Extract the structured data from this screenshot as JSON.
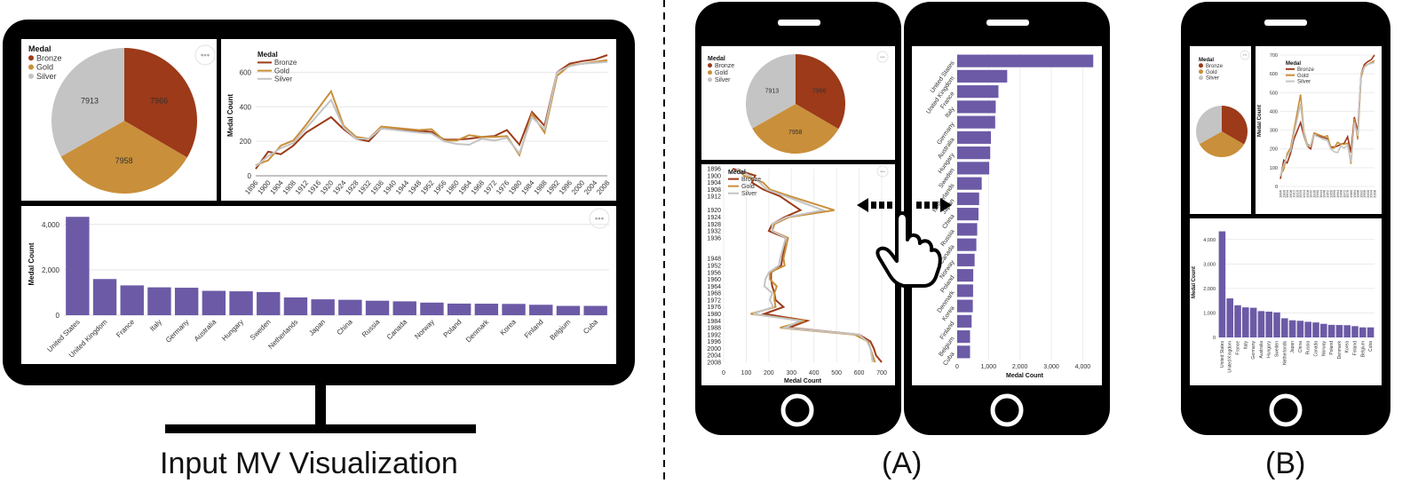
{
  "captions": {
    "input": "Input MV Visualization",
    "a": "(A)",
    "b": "(B)"
  },
  "colors": {
    "bronze": "#9c3a19",
    "gold": "#c98f3a",
    "silver": "#c4c4c4",
    "bar": "#6c5aa6",
    "frame": "#000000"
  },
  "legend": {
    "title": "Medal",
    "items": [
      "Bronze",
      "Gold",
      "Silver"
    ]
  },
  "chart_data": [
    {
      "type": "pie",
      "title": "Medal",
      "labels": [
        "Bronze",
        "Gold",
        "Silver"
      ],
      "values": [
        7966,
        7958,
        7913
      ]
    },
    {
      "type": "line",
      "ylabel": "Medal Count",
      "ylim": [
        0,
        700
      ],
      "yticks": [
        0,
        200,
        400,
        600
      ],
      "x": [
        1896,
        1900,
        1904,
        1908,
        1912,
        1920,
        1924,
        1928,
        1932,
        1936,
        1948,
        1952,
        1956,
        1960,
        1964,
        1968,
        1972,
        1976,
        1980,
        1984,
        1988,
        1992,
        1996,
        2000,
        2004,
        2008
      ],
      "xticks": [
        1896,
        1900,
        1904,
        1908,
        1912,
        1916,
        1920,
        1924,
        1928,
        1932,
        1936,
        1940,
        1944,
        1948,
        1952,
        1956,
        1960,
        1964,
        1968,
        1972,
        1976,
        1980,
        1984,
        1988,
        1992,
        1996,
        2000,
        2004,
        2008
      ],
      "series": [
        {
          "name": "Bronze",
          "values": [
            40,
            140,
            125,
            175,
            250,
            340,
            270,
            215,
            200,
            275,
            260,
            255,
            210,
            210,
            215,
            225,
            230,
            265,
            180,
            370,
            290,
            600,
            650,
            665,
            675,
            700
          ]
        },
        {
          "name": "Gold",
          "values": [
            62,
            90,
            175,
            205,
            295,
            490,
            290,
            225,
            215,
            285,
            265,
            270,
            205,
            205,
            235,
            225,
            225,
            230,
            120,
            360,
            250,
            580,
            640,
            650,
            660,
            670
          ]
        },
        {
          "name": "Silver",
          "values": [
            55,
            115,
            160,
            190,
            275,
            440,
            280,
            215,
            215,
            275,
            250,
            245,
            200,
            185,
            180,
            215,
            205,
            220,
            130,
            340,
            270,
            600,
            635,
            650,
            655,
            660
          ]
        }
      ]
    },
    {
      "type": "bar",
      "ylabel": "Medal Count",
      "ylim": [
        0,
        4500
      ],
      "yticks": [
        "0",
        "2,000",
        "4,000"
      ],
      "categories": [
        "United States",
        "United Kingdom",
        "France",
        "Italy",
        "Germany",
        "Australia",
        "Hungary",
        "Sweden",
        "Netherlands",
        "Japan",
        "China",
        "Russia",
        "Canada",
        "Norway",
        "Poland",
        "Denmark",
        "Korea",
        "Finland",
        "Belgium",
        "Cuba"
      ],
      "values": [
        4335,
        1594,
        1314,
        1228,
        1211,
        1075,
        1053,
        1021,
        782,
        700,
        679,
        638,
        611,
        555,
        512,
        507,
        498,
        460,
        410,
        410
      ]
    }
  ],
  "mobile_a": {
    "line": {
      "ylabel": "Medal Count",
      "xticks": [
        "0",
        "100",
        "200",
        "300",
        "400",
        "500",
        "600",
        "700"
      ],
      "yticks": [
        "1896",
        "1900",
        "1904",
        "1908",
        "1912",
        "1920",
        "1924",
        "1928",
        "1932",
        "1936",
        "1948",
        "1952",
        "1956",
        "1960",
        "1964",
        "1968",
        "1972",
        "1976",
        "1980",
        "1984",
        "1988",
        "1992",
        "1996",
        "2000",
        "2004",
        "2008"
      ]
    },
    "bar": {
      "xlabel": "Medal Count",
      "xticks": [
        "0",
        "1,000",
        "2,000",
        "3,000",
        "4,000"
      ]
    }
  },
  "mobile_b": {
    "line_yticks": [
      "0",
      "100",
      "200",
      "300",
      "400",
      "500",
      "600",
      "700"
    ],
    "bar_yticks": [
      "0",
      "1,000",
      "2,000",
      "3,000",
      "4,000"
    ],
    "bar_ylabel": "Medal Count",
    "line_ylabel": "Medal Count"
  },
  "more_icon": "•••"
}
